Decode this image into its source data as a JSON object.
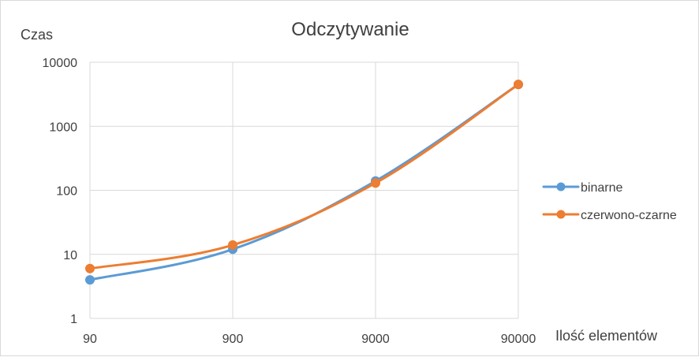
{
  "chart_data": {
    "type": "line",
    "title": "Odczytywanie",
    "xlabel": "Ilość elementów",
    "ylabel": "Czas",
    "x_scale": "log",
    "y_scale": "log",
    "x_ticks": [
      "90",
      "900",
      "9000",
      "90000"
    ],
    "y_ticks": [
      "1",
      "10",
      "100",
      "1000",
      "10000"
    ],
    "x": [
      90,
      900,
      9000,
      90000
    ],
    "ylim": [
      1,
      10000
    ],
    "grid": true,
    "legend_position": "right",
    "series": [
      {
        "name": "binarne",
        "values": [
          4,
          12,
          140,
          4500
        ],
        "color": "#5b9bd5"
      },
      {
        "name": "czerwono-czarne",
        "values": [
          6,
          14,
          130,
          4500
        ],
        "color": "#ed7d31"
      }
    ]
  }
}
